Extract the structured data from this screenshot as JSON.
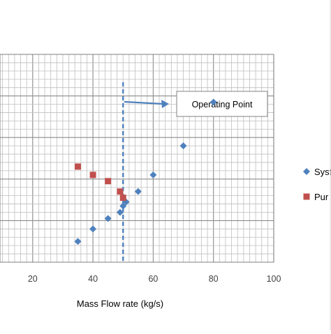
{
  "chart_data": {
    "type": "scatter",
    "xlabel": "Mass Flow rate (kg/s)",
    "xlim": [
      0,
      100
    ],
    "x_ticks": [
      20,
      40,
      60,
      80,
      100
    ],
    "ylim": [
      0,
      10
    ],
    "grid": true,
    "legend_position": "right",
    "series": [
      {
        "name": "Syst",
        "marker": "diamond",
        "color": "#4f81bd",
        "points": [
          {
            "x": 35,
            "y": 1.0
          },
          {
            "x": 40,
            "y": 1.6
          },
          {
            "x": 45,
            "y": 2.1
          },
          {
            "x": 49,
            "y": 2.4
          },
          {
            "x": 50,
            "y": 2.7
          },
          {
            "x": 51,
            "y": 2.9
          },
          {
            "x": 55,
            "y": 3.4
          },
          {
            "x": 60,
            "y": 4.2
          },
          {
            "x": 70,
            "y": 5.6
          },
          {
            "x": 80,
            "y": 7.7
          }
        ]
      },
      {
        "name": "Pur",
        "marker": "square",
        "color": "#c0504d",
        "points": [
          {
            "x": 35,
            "y": 4.6
          },
          {
            "x": 40,
            "y": 4.2
          },
          {
            "x": 45,
            "y": 3.9
          },
          {
            "x": 49,
            "y": 3.4
          },
          {
            "x": 50,
            "y": 3.1
          }
        ]
      }
    ],
    "reference_line": {
      "x": 50,
      "style": "dashed",
      "color": "#4f81bd"
    },
    "annotation": {
      "text": "Operating Point",
      "arrow_color": "#4f81bd"
    }
  }
}
